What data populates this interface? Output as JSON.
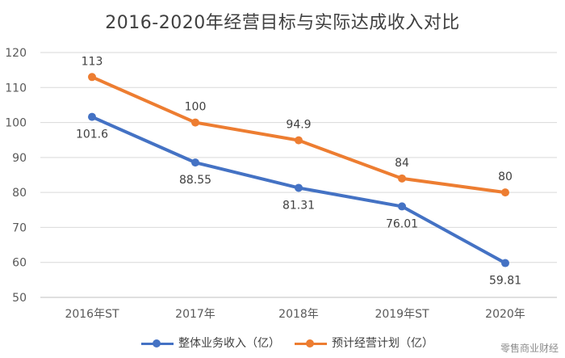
{
  "chart_data": {
    "type": "line",
    "title": "2016-2020年经营目标与实际达成收入对比",
    "categories": [
      "2016年ST",
      "2017年",
      "2018年",
      "2019年ST",
      "2020年"
    ],
    "ylim": [
      50,
      120
    ],
    "yticks": [
      50,
      60,
      70,
      80,
      90,
      100,
      110,
      120
    ],
    "grid": true,
    "legend_position": "bottom",
    "series": [
      {
        "name": "整体业务收入（亿）",
        "color": "#4472c4",
        "values": [
          101.6,
          88.55,
          81.31,
          76.01,
          59.81
        ],
        "labels": [
          "101.6",
          "88.55",
          "81.31",
          "76.01",
          "59.81"
        ],
        "label_position": "below"
      },
      {
        "name": "预计经营计划（亿）",
        "color": "#ed7d31",
        "values": [
          113,
          100,
          94.9,
          84,
          80
        ],
        "labels": [
          "113",
          "100",
          "94.9",
          "84",
          "80"
        ],
        "label_position": "above"
      }
    ]
  },
  "watermark": "零售商业财经"
}
